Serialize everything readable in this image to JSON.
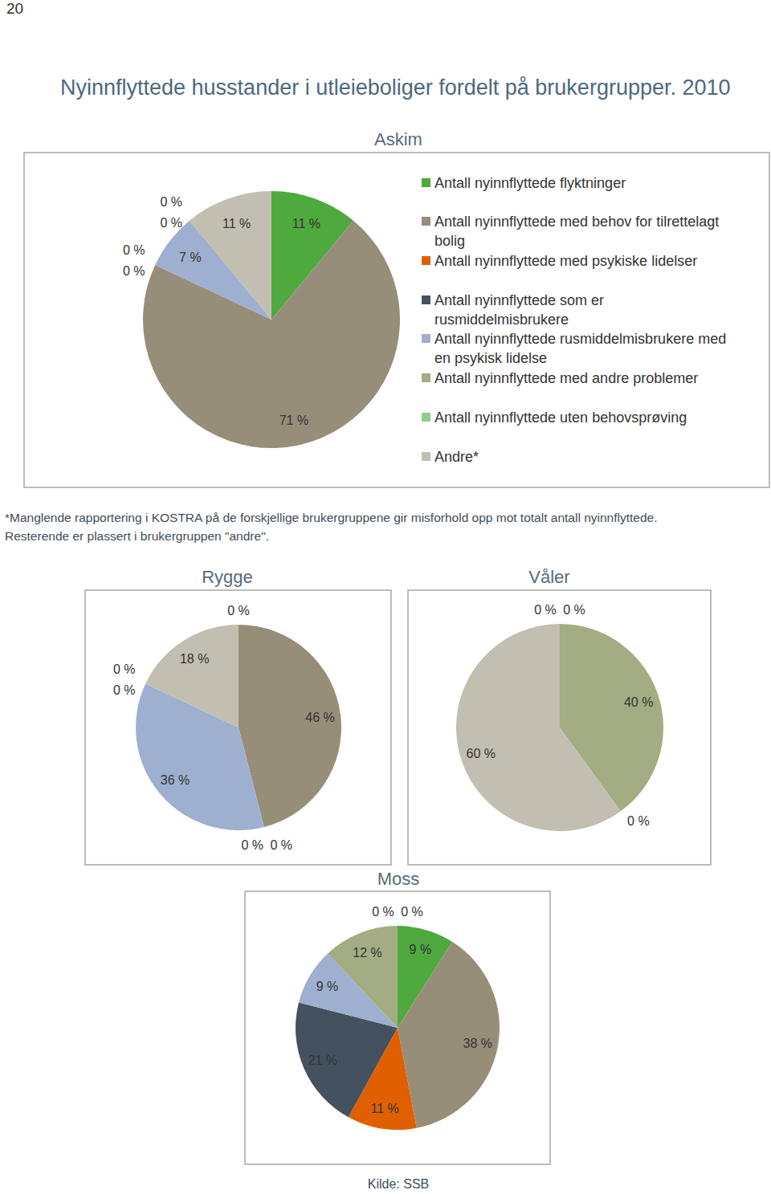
{
  "page_number": "20",
  "title": "Nyinnflyttede husstander i utleieboliger fordelt på brukergrupper. 2010",
  "footnote": [
    "*Manglende rapportering i KOSTRA på de forskjellige brukergruppene gir misforhold opp mot totalt antall nyinnflyttede.",
    "Resterende er plassert i brukergruppen \"andre\"."
  ],
  "source": "Kilde: SSB",
  "chart_data": [
    {
      "type": "pie",
      "title": "Askim",
      "categories": [
        "Antall nyinnflyttede flyktninger",
        "Antall nyinnflyttede med behov for tilrettelagt bolig",
        "Antall nyinnflyttede med psykiske lidelser",
        "Antall nyinnflyttede som er rusmiddelmisbrukere",
        "Antall nyinnflyttede rusmiddelmisbrukere med en psykisk lidelse",
        "Antall nyinnflyttede med andre problemer",
        "Antall nyinnflyttede uten behovsprøving",
        "Andre*"
      ],
      "colors": [
        "#4ea93e",
        "#978e7a",
        "#e06000",
        "#44525f",
        "#9eafd0",
        "#a3ac82",
        "#8fcd8a",
        "#c2beb1"
      ],
      "values": [
        11,
        71,
        0,
        0,
        7,
        0,
        0,
        11
      ],
      "value_labels": [
        "11 %",
        "71 %",
        "0 %",
        "0 %",
        "7 %",
        "0 %",
        "0 %",
        "11 %"
      ],
      "data_labels": true,
      "legend": "right"
    },
    {
      "type": "pie",
      "title": "Rygge",
      "categories": [
        "Antall nyinnflyttede flyktninger",
        "Antall nyinnflyttede med behov for tilrettelagt bolig",
        "Antall nyinnflyttede med psykiske lidelser",
        "Antall nyinnflyttede som er rusmiddelmisbrukere",
        "Antall nyinnflyttede rusmiddelmisbrukere med en psykisk lidelse",
        "Antall nyinnflyttede med andre problemer",
        "Antall nyinnflyttede uten behovsprøving",
        "Andre*"
      ],
      "colors": [
        "#4ea93e",
        "#978e7a",
        "#e06000",
        "#44525f",
        "#9eafd0",
        "#a3ac82",
        "#8fcd8a",
        "#c2beb1"
      ],
      "values": [
        0,
        46,
        0,
        0,
        36,
        0,
        0,
        18
      ],
      "value_labels": [
        "0 %",
        "46 %",
        "0 %",
        "0 %",
        "36 %",
        "0 %",
        "0 %",
        "18 %"
      ],
      "data_labels": true
    },
    {
      "type": "pie",
      "title": "Våler",
      "categories": [
        "Antall nyinnflyttede flyktninger",
        "Antall nyinnflyttede med behov for tilrettelagt bolig",
        "Antall nyinnflyttede med andre problemer",
        "Antall nyinnflyttede uten behovsprøving",
        "Andre*"
      ],
      "colors": [
        "#4ea93e",
        "#978e7a",
        "#a3ac82",
        "#8fcd8a",
        "#c2beb1"
      ],
      "values": [
        0,
        0,
        40,
        0,
        60
      ],
      "value_labels": [
        "0 %",
        "0 %",
        "40 %",
        "0 %",
        "60 %"
      ],
      "data_labels": true
    },
    {
      "type": "pie",
      "title": "Moss",
      "categories": [
        "Antall nyinnflyttede flyktninger",
        "Antall nyinnflyttede med behov for tilrettelagt bolig",
        "Antall nyinnflyttede med psykiske lidelser",
        "Antall nyinnflyttede som er rusmiddelmisbrukere",
        "Antall nyinnflyttede rusmiddelmisbrukere med en psykisk lidelse",
        "Antall nyinnflyttede med andre problemer",
        "Antall nyinnflyttede uten behovsprøving",
        "Andre*"
      ],
      "colors": [
        "#4ea93e",
        "#978e7a",
        "#e06000",
        "#44525f",
        "#9eafd0",
        "#a3ac82",
        "#8fcd8a",
        "#c2beb1"
      ],
      "values": [
        9,
        38,
        11,
        21,
        9,
        12,
        0,
        0
      ],
      "value_labels": [
        "9 %",
        "38 %",
        "11 %",
        "21 %",
        "9 %",
        "12 %",
        "0 %",
        "0 %"
      ],
      "data_labels": true
    }
  ]
}
